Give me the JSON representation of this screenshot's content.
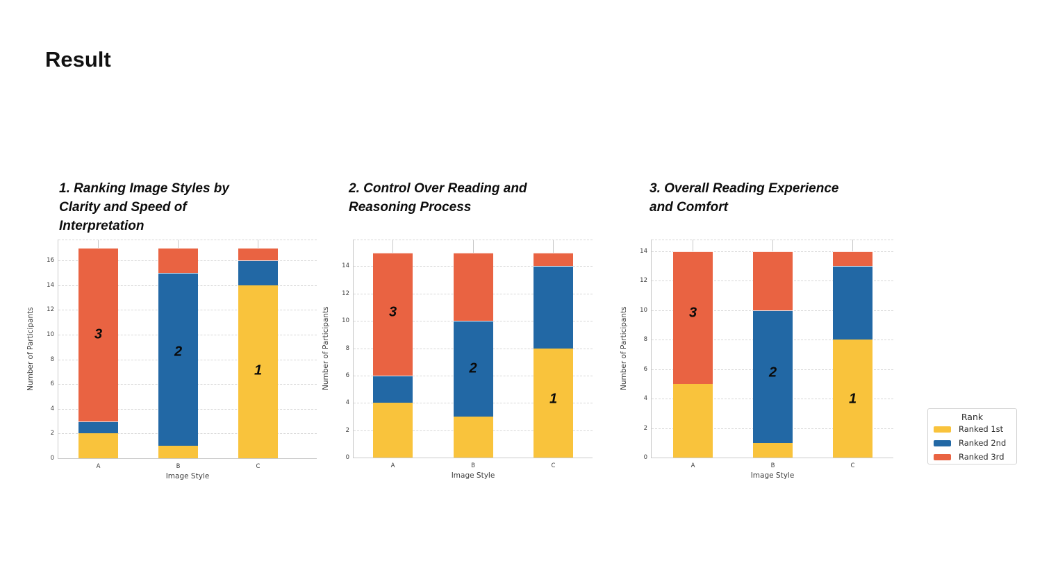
{
  "page": {
    "title": "Result"
  },
  "legend": {
    "title": "Rank",
    "items": [
      {
        "label": "Ranked 1st",
        "color": "#F9C33C"
      },
      {
        "label": "Ranked 2nd",
        "color": "#2268A5"
      },
      {
        "label": "Ranked 3rd",
        "color": "#E96342"
      }
    ]
  },
  "colors": {
    "ranked_1st": "#F9C33C",
    "ranked_2nd": "#2268A5",
    "ranked_3rd": "#E96342",
    "grid": "#d6d6d6",
    "axis_text": "#3d3d3d"
  },
  "chart_data": [
    {
      "type": "bar",
      "stacked": true,
      "title": "1. Ranking Image Styles by Clarity and Speed of Interpretation",
      "title_lines": [
        "1. Ranking Image Styles by",
        "Clarity and Speed of",
        "Interpretation"
      ],
      "xlabel": "Image Style",
      "ylabel": "Number of Participants",
      "categories": [
        "A",
        "B",
        "C"
      ],
      "series": [
        {
          "name": "Ranked 1st",
          "values": [
            2,
            1,
            14
          ]
        },
        {
          "name": "Ranked 2nd",
          "values": [
            1,
            14,
            2
          ]
        },
        {
          "name": "Ranked 3rd",
          "values": [
            14,
            2,
            1
          ]
        }
      ],
      "yticks": [
        0,
        2,
        4,
        6,
        8,
        10,
        12,
        14,
        16
      ],
      "ylim": [
        0,
        17.7
      ],
      "grid": "dashed-horizontal",
      "annotations": [
        {
          "text": "3",
          "category": "A",
          "y": 10.0
        },
        {
          "text": "2",
          "category": "B",
          "y": 8.6
        },
        {
          "text": "1",
          "category": "C",
          "y": 7.1
        }
      ]
    },
    {
      "type": "bar",
      "stacked": true,
      "title": "2. Control Over Reading and Reasoning Process",
      "title_lines": [
        "2. Control Over Reading and",
        "Reasoning Process"
      ],
      "xlabel": "Image Style",
      "ylabel": "Number of Participants",
      "categories": [
        "A",
        "B",
        "C"
      ],
      "series": [
        {
          "name": "Ranked 1st",
          "values": [
            4,
            3,
            8
          ]
        },
        {
          "name": "Ranked 2nd",
          "values": [
            2,
            7,
            6
          ]
        },
        {
          "name": "Ranked 3rd",
          "values": [
            9,
            5,
            1
          ]
        }
      ],
      "yticks": [
        0,
        2,
        4,
        6,
        8,
        10,
        12,
        14
      ],
      "ylim": [
        0,
        15.95
      ],
      "grid": "dashed-horizontal",
      "annotations": [
        {
          "text": "3",
          "category": "A",
          "y": 10.6
        },
        {
          "text": "2",
          "category": "B",
          "y": 6.5
        },
        {
          "text": "1",
          "category": "C",
          "y": 4.25
        }
      ]
    },
    {
      "type": "bar",
      "stacked": true,
      "title": "3. Overall Reading Experience and Comfort",
      "title_lines": [
        "3. Overall Reading Experience",
        "and Comfort"
      ],
      "xlabel": "Image Style",
      "ylabel": "Number of Participants",
      "categories": [
        "A",
        "B",
        "C"
      ],
      "series": [
        {
          "name": "Ranked 1st",
          "values": [
            5,
            1,
            8
          ]
        },
        {
          "name": "Ranked 2nd",
          "values": [
            0,
            9,
            5
          ]
        },
        {
          "name": "Ranked 3rd",
          "values": [
            9,
            4,
            1
          ]
        }
      ],
      "yticks": [
        0,
        2,
        4,
        6,
        8,
        10,
        12,
        14
      ],
      "ylim": [
        0,
        14.8
      ],
      "grid": "dashed-horizontal",
      "annotations": [
        {
          "text": "3",
          "category": "A",
          "y": 9.8
        },
        {
          "text": "2",
          "category": "B",
          "y": 5.75
        },
        {
          "text": "1",
          "category": "C",
          "y": 3.95
        }
      ]
    }
  ]
}
